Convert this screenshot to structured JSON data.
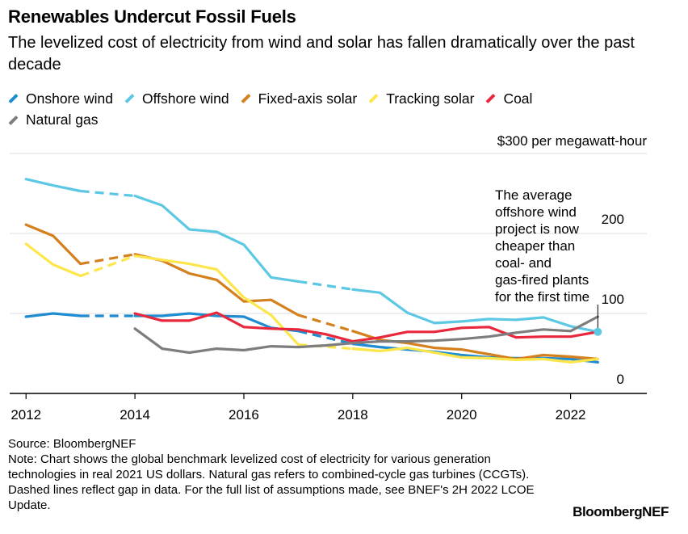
{
  "title": "Renewables Undercut Fossil Fuels",
  "subtitle": "The levelized cost of electricity from wind and solar has fallen dramatically over the past decade",
  "footer": {
    "source": "Source: BloombergNEF",
    "note": "Note: Chart shows the global benchmark levelized cost of electricity for various generation technologies in real 2021 US dollars. Natural gas refers to combined-cycle gas turbines (CCGTs). Dashed lines reflect gap in data. For the full list of assumptions made, see BNEF's 2H 2022 LCOE Update."
  },
  "brand": "BloombergNEF",
  "chart_data": {
    "type": "line",
    "title": "Renewables Undercut Fossil Fuels",
    "ylabel": "$300 per megawatt-hour",
    "ylim": [
      0,
      300
    ],
    "xlim": [
      2011.7,
      2023.4
    ],
    "x_ticks": [
      2012,
      2014,
      2016,
      2018,
      2020,
      2022
    ],
    "x_tick_labels": [
      "2012",
      "2014",
      "2016",
      "2018",
      "2020",
      "2022"
    ],
    "y_ticks": [
      0,
      100,
      200,
      300
    ],
    "y_tick_labels": [
      "0",
      "100",
      "200",
      "$300 per megawatt-hour"
    ],
    "grid": true,
    "legend_position": "top",
    "annotation": {
      "text": "The average offshore wind project is now cheaper than coal- and gas-fired plants for the first time",
      "x": 2022.5,
      "y": 77
    },
    "series": [
      {
        "name": "Onshore wind",
        "color": "#1f8bd0",
        "segments": [
          {
            "style": "solid",
            "points": [
              [
                2012,
                96
              ],
              [
                2012.5,
                100
              ],
              [
                2013,
                97
              ]
            ]
          },
          {
            "style": "dashed",
            "points": [
              [
                2013,
                97
              ],
              [
                2014,
                97
              ]
            ]
          },
          {
            "style": "solid",
            "points": [
              [
                2014,
                97
              ],
              [
                2014.5,
                97
              ],
              [
                2015,
                100
              ],
              [
                2015.5,
                97
              ],
              [
                2016,
                96
              ],
              [
                2016.5,
                82
              ],
              [
                2017,
                78
              ]
            ]
          },
          {
            "style": "dashed",
            "points": [
              [
                2017,
                78
              ],
              [
                2018,
                62
              ]
            ]
          },
          {
            "style": "solid",
            "points": [
              [
                2018,
                62
              ],
              [
                2018.5,
                58
              ],
              [
                2019,
                55
              ],
              [
                2019.5,
                52
              ],
              [
                2020,
                48
              ],
              [
                2020.5,
                45
              ],
              [
                2021,
                44
              ],
              [
                2021.5,
                44
              ],
              [
                2022,
                43
              ],
              [
                2022.5,
                39
              ]
            ]
          }
        ]
      },
      {
        "name": "Offshore wind",
        "color": "#5cc8e4",
        "segments": [
          {
            "style": "solid",
            "points": [
              [
                2012,
                268
              ],
              [
                2012.5,
                260
              ],
              [
                2013,
                253
              ]
            ]
          },
          {
            "style": "dashed",
            "points": [
              [
                2013,
                253
              ],
              [
                2014,
                247
              ]
            ]
          },
          {
            "style": "solid",
            "points": [
              [
                2014,
                247
              ],
              [
                2014.5,
                235
              ],
              [
                2015,
                205
              ],
              [
                2015.5,
                202
              ],
              [
                2016,
                186
              ],
              [
                2016.5,
                145
              ],
              [
                2017,
                140
              ]
            ]
          },
          {
            "style": "dashed",
            "points": [
              [
                2017,
                140
              ],
              [
                2018,
                130
              ]
            ]
          },
          {
            "style": "solid",
            "points": [
              [
                2018,
                130
              ],
              [
                2018.5,
                126
              ],
              [
                2019,
                101
              ],
              [
                2019.5,
                88
              ],
              [
                2020,
                90
              ],
              [
                2020.5,
                93
              ],
              [
                2021,
                92
              ],
              [
                2021.5,
                95
              ],
              [
                2022,
                84
              ],
              [
                2022.5,
                77
              ]
            ]
          }
        ]
      },
      {
        "name": "Fixed-axis solar",
        "color": "#d4801e",
        "segments": [
          {
            "style": "solid",
            "points": [
              [
                2012,
                211
              ],
              [
                2012.5,
                197
              ],
              [
                2013,
                162
              ]
            ]
          },
          {
            "style": "dashed",
            "points": [
              [
                2013,
                162
              ],
              [
                2014,
                174
              ]
            ]
          },
          {
            "style": "solid",
            "points": [
              [
                2014,
                174
              ],
              [
                2014.5,
                166
              ],
              [
                2015,
                150
              ],
              [
                2015.5,
                142
              ],
              [
                2016,
                115
              ],
              [
                2016.5,
                117
              ],
              [
                2017,
                98
              ]
            ]
          },
          {
            "style": "dashed",
            "points": [
              [
                2017,
                98
              ],
              [
                2018,
                78
              ]
            ]
          },
          {
            "style": "solid",
            "points": [
              [
                2018,
                78
              ],
              [
                2018.5,
                67
              ],
              [
                2019,
                63
              ],
              [
                2019.5,
                57
              ],
              [
                2020,
                55
              ],
              [
                2020.5,
                49
              ],
              [
                2021,
                43
              ],
              [
                2021.5,
                48
              ],
              [
                2022,
                46
              ],
              [
                2022.5,
                43
              ]
            ]
          }
        ]
      },
      {
        "name": "Tracking solar",
        "color": "#fde64b",
        "segments": [
          {
            "style": "solid",
            "points": [
              [
                2012,
                187
              ],
              [
                2012.5,
                161
              ],
              [
                2013,
                147
              ]
            ]
          },
          {
            "style": "dashed",
            "points": [
              [
                2013,
                147
              ],
              [
                2014,
                172
              ]
            ]
          },
          {
            "style": "solid",
            "points": [
              [
                2014,
                172
              ],
              [
                2014.5,
                167
              ],
              [
                2015,
                162
              ],
              [
                2015.5,
                155
              ],
              [
                2016,
                120
              ],
              [
                2016.5,
                98
              ],
              [
                2017,
                61
              ]
            ]
          },
          {
            "style": "dashed",
            "points": [
              [
                2017,
                61
              ],
              [
                2018,
                56
              ]
            ]
          },
          {
            "style": "solid",
            "points": [
              [
                2018,
                56
              ],
              [
                2018.5,
                53
              ],
              [
                2019,
                57
              ],
              [
                2019.5,
                51
              ],
              [
                2020,
                45
              ],
              [
                2020.5,
                44
              ],
              [
                2021,
                42
              ],
              [
                2021.5,
                43
              ],
              [
                2022,
                39
              ],
              [
                2022.5,
                43
              ]
            ]
          }
        ]
      },
      {
        "name": "Coal",
        "color": "#e8273c",
        "segments": [
          {
            "style": "solid",
            "points": [
              [
                2014,
                100
              ],
              [
                2014.5,
                91
              ],
              [
                2015,
                91
              ],
              [
                2015.5,
                101
              ],
              [
                2016,
                83
              ],
              [
                2016.5,
                81
              ],
              [
                2017,
                80
              ],
              [
                2017.5,
                74
              ],
              [
                2018,
                65
              ],
              [
                2018.5,
                70
              ],
              [
                2019,
                77
              ],
              [
                2019.5,
                77
              ],
              [
                2020,
                82
              ],
              [
                2020.5,
                83
              ],
              [
                2021,
                70
              ],
              [
                2021.5,
                71
              ],
              [
                2022,
                71
              ],
              [
                2022.5,
                77
              ]
            ]
          }
        ]
      },
      {
        "name": "Natural gas",
        "color": "#7d7d7d",
        "segments": [
          {
            "style": "solid",
            "points": [
              [
                2014,
                81
              ],
              [
                2014.5,
                56
              ],
              [
                2015,
                51
              ],
              [
                2015.5,
                56
              ],
              [
                2016,
                54
              ],
              [
                2016.5,
                59
              ],
              [
                2017,
                58
              ],
              [
                2017.5,
                60
              ],
              [
                2018,
                63
              ],
              [
                2018.5,
                65
              ],
              [
                2019,
                65
              ],
              [
                2019.5,
                66
              ],
              [
                2020,
                68
              ],
              [
                2020.5,
                71
              ],
              [
                2021,
                76
              ],
              [
                2021.5,
                80
              ],
              [
                2022,
                78
              ],
              [
                2022.5,
                96
              ]
            ]
          }
        ]
      }
    ]
  }
}
